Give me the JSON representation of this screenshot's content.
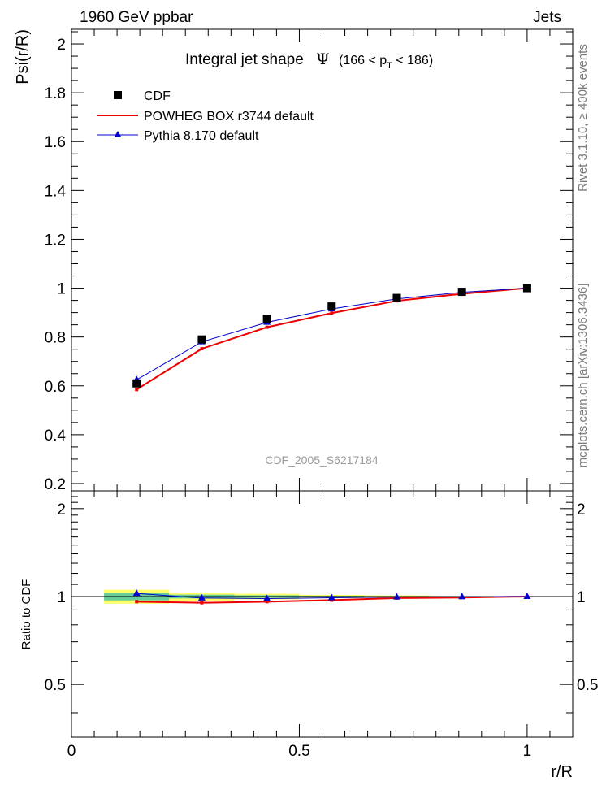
{
  "header": {
    "left": "1960 GeV ppbar",
    "right": "Jets"
  },
  "side_labels": {
    "rivet": "Rivet 3.1.10, ≥ 400k events",
    "mcplots": "mcplots.cern.ch [arXiv:1306.3436]"
  },
  "watermark": "CDF_2005_S6217184",
  "colors": {
    "data": "#000000",
    "powheg": "#ee0000",
    "pythia": "#0000cc",
    "band_inner": "#66cc99",
    "band_outer": "#ffff66"
  },
  "chart_data": [
    {
      "type": "line",
      "panel": "main",
      "title_main": "Integral jet shape",
      "title_psi": "Ψ",
      "title_range": "(166 < p",
      "title_sub": "T",
      "title_end": " < 186)",
      "ylabel": "Psi(r/R)",
      "xlim": [
        0,
        1.1
      ],
      "ylim": [
        0.17,
        2.06
      ],
      "yticks": [
        0.2,
        0.4,
        0.6,
        0.8,
        1.0,
        1.2,
        1.4,
        1.6,
        1.8,
        2.0
      ],
      "ytick_labels": [
        "0.2",
        "0.4",
        "0.6",
        "0.8",
        "1",
        "1.2",
        "1.4",
        "1.6",
        "1.8",
        "2"
      ],
      "legend_position": "top-left",
      "x": [
        0.143,
        0.286,
        0.429,
        0.571,
        0.714,
        0.857,
        1.0
      ],
      "series": [
        {
          "name": "CDF",
          "style": "markers",
          "values": [
            0.61,
            0.79,
            0.875,
            0.925,
            0.96,
            0.985,
            1.0
          ]
        },
        {
          "name": "POWHEG BOX r3744 default",
          "style": "line",
          "values": [
            0.585,
            0.752,
            0.84,
            0.898,
            0.948,
            0.977,
            1.0
          ]
        },
        {
          "name": "Pythia 8.170 default",
          "style": "line-markers",
          "values": [
            0.625,
            0.78,
            0.86,
            0.915,
            0.956,
            0.983,
            1.0
          ]
        }
      ]
    },
    {
      "type": "line",
      "panel": "ratio",
      "ylabel": "Ratio to CDF",
      "xlabel": "r/R",
      "xlim": [
        0,
        1.1
      ],
      "ylim": [
        0.33,
        2.3
      ],
      "yticks": [
        0.5,
        1.0,
        2.0
      ],
      "ytick_labels": [
        "0.5",
        "1",
        "2"
      ],
      "xticks": [
        0,
        0.5,
        1
      ],
      "xtick_labels": [
        "0",
        "0.5",
        "1"
      ],
      "x": [
        0.143,
        0.286,
        0.429,
        0.571,
        0.714,
        0.857,
        1.0
      ],
      "bands": {
        "bin_edges": [
          0.0715,
          0.2145,
          0.3575,
          0.5005,
          0.6435,
          0.7865,
          0.9295,
          1.0725
        ],
        "outer": [
          0.055,
          0.032,
          0.022,
          0.013,
          0.009,
          0.005,
          0.002
        ],
        "inner": [
          0.03,
          0.015,
          0.01,
          0.006,
          0.004,
          0.002,
          0.001
        ]
      },
      "series": [
        {
          "name": "POWHEG BOX r3744 default",
          "values": [
            0.96,
            0.952,
            0.96,
            0.972,
            0.988,
            0.992,
            1.0
          ]
        },
        {
          "name": "Pythia 8.170 default",
          "values": [
            1.025,
            0.988,
            0.984,
            0.99,
            0.996,
            0.998,
            1.0
          ]
        }
      ]
    }
  ]
}
